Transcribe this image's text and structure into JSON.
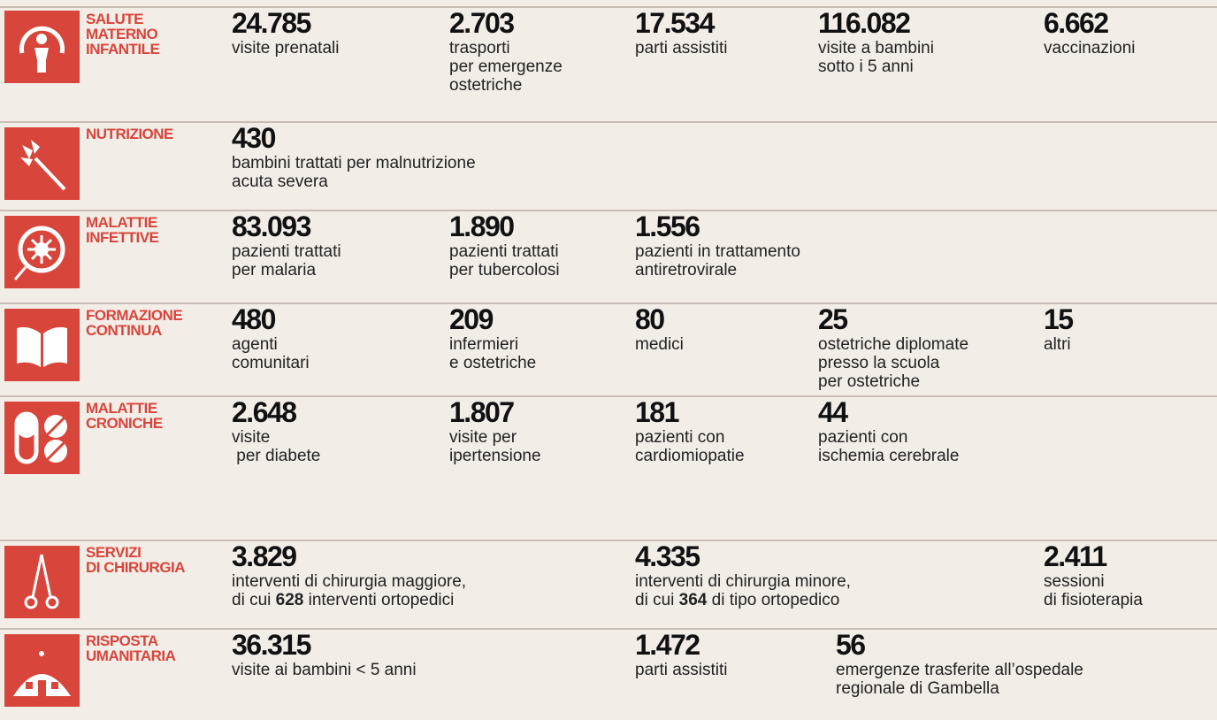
{
  "rows": [
    {
      "label": [
        "SALUTE",
        "MATERNO",
        "INFANTILE"
      ],
      "stats": [
        {
          "number": "24.785",
          "lines": [
            "visite prenatali"
          ]
        },
        {
          "number": "2.703",
          "lines": [
            "trasporti",
            "per emergenze",
            "ostetriche"
          ]
        },
        {
          "number": "17.534",
          "lines": [
            "parti assistiti"
          ]
        },
        {
          "number": "116.082",
          "lines": [
            "visite a bambini",
            "sotto i 5 anni"
          ]
        },
        {
          "number": "6.662",
          "lines": [
            "vaccinazioni"
          ]
        }
      ]
    },
    {
      "label": [
        "NUTRIZIONE"
      ],
      "stats": [
        {
          "number": "430",
          "lines": [
            "bambini trattati per malnutrizione",
            "acuta severa"
          ]
        }
      ]
    },
    {
      "label": [
        "MALATTIE",
        "INFETTIVE"
      ],
      "stats": [
        {
          "number": "83.093",
          "lines": [
            "pazienti trattati",
            "per malaria"
          ]
        },
        {
          "number": "1.890",
          "lines": [
            "pazienti trattati",
            "per tubercolosi"
          ]
        },
        {
          "number": "1.556",
          "lines": [
            "pazienti in trattamento",
            "antiretrovirale"
          ]
        }
      ]
    },
    {
      "label": [
        "FORMAZIONE",
        "CONTINUA"
      ],
      "stats": [
        {
          "number": "480",
          "lines": [
            "agenti",
            "comunitari"
          ]
        },
        {
          "number": "209",
          "lines": [
            "infermieri",
            "e ostetriche"
          ]
        },
        {
          "number": "80",
          "lines": [
            "medici"
          ]
        },
        {
          "number": "25",
          "lines": [
            "ostetriche diplomate",
            "presso la scuola",
            "per ostetriche"
          ]
        },
        {
          "number": "15",
          "lines": [
            "altri"
          ]
        }
      ]
    },
    {
      "label": [
        "MALATTIE",
        "CRONICHE"
      ],
      "stats": [
        {
          "number": "2.648",
          "lines": [
            "visite",
            " per diabete"
          ]
        },
        {
          "number": "1.807",
          "lines": [
            "visite per",
            "ipertensione"
          ]
        },
        {
          "number": "181",
          "lines": [
            "pazienti con",
            "cardiomiopatie"
          ]
        },
        {
          "number": "44",
          "lines": [
            "pazienti con",
            "ischemia cerebrale"
          ]
        }
      ]
    },
    {
      "label": [
        "SERVIZI",
        "DI CHIRURGIA"
      ],
      "stats": [
        {
          "number": "3.829",
          "lines": [
            "interventi di chirurgia maggiore,",
            {
              "before": "di cui ",
              "bold": "628",
              "after": " interventi ortopedici"
            }
          ]
        },
        {
          "number": "4.335",
          "lines": [
            "interventi di chirurgia minore,",
            {
              "before": "di cui ",
              "bold": "364",
              "after": " di tipo ortopedico"
            }
          ]
        },
        {
          "number": "2.411",
          "lines": [
            "sessioni",
            "di fisioterapia"
          ]
        }
      ]
    },
    {
      "label": [
        "RISPOSTA",
        "UMANITARIA"
      ],
      "stats": [
        {
          "number": "36.315",
          "lines": [
            "visite ai bambini < 5 anni"
          ]
        },
        {
          "number": "1.472",
          "lines": [
            "parti assistiti"
          ]
        },
        {
          "number": "56",
          "lines": [
            "emergenze trasferite all’ospedale",
            "regionale di Gambella"
          ]
        }
      ]
    }
  ]
}
